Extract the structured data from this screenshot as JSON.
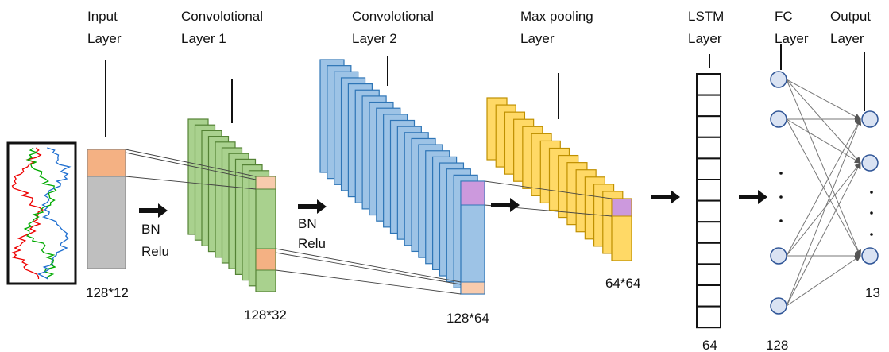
{
  "layers": [
    {
      "title": [
        "Input",
        "Layer"
      ],
      "size": "128*12"
    },
    {
      "title": [
        "Convolotional",
        "Layer 1"
      ],
      "size": "128*32"
    },
    {
      "title": [
        "Convolotional",
        "Layer 2"
      ],
      "size": "128*64"
    },
    {
      "title": [
        "Max pooling",
        "Layer"
      ],
      "size": "64*64"
    },
    {
      "title": [
        "LSTM",
        "Layer"
      ],
      "size": "64"
    },
    {
      "title": [
        "FC",
        "Layer"
      ],
      "size": "128"
    },
    {
      "title": [
        "Output",
        "Layer"
      ],
      "size": "13"
    }
  ],
  "activations": [
    [
      "BN",
      "Relu"
    ],
    [
      "BN",
      "Relu"
    ]
  ]
}
